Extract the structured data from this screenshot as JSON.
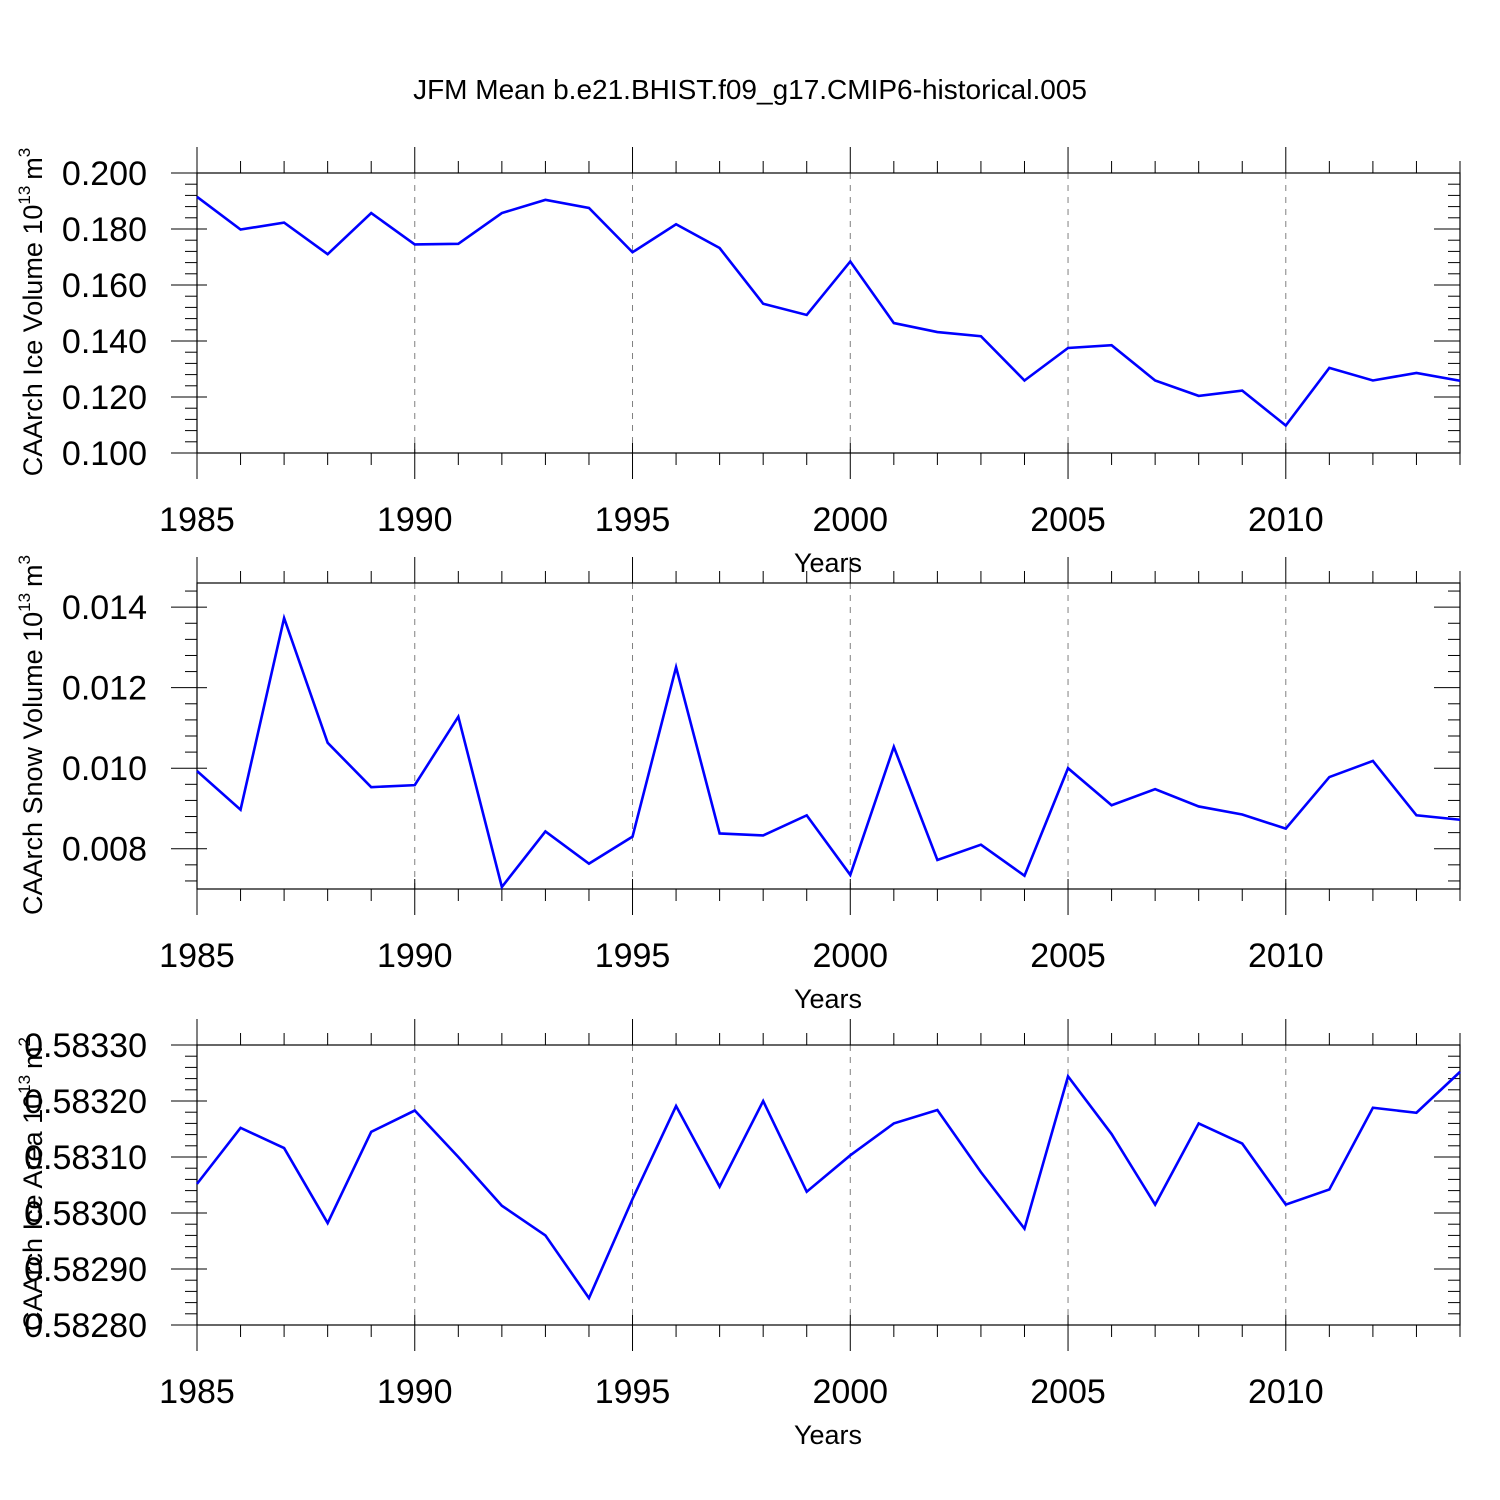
{
  "title": "JFM Mean b.e21.BHIST.f09_g17.CMIP6-historical.005",
  "chart_data": [
    {
      "type": "line",
      "ylabel_main": "CAArch Ice Volume 10",
      "ylabel_exp": "13",
      "ylabel_unit": "m",
      "ylabel_unit_exp": "3",
      "xlabel": "Years",
      "xlim": [
        1985,
        2014
      ],
      "ylim": [
        0.1,
        0.2
      ],
      "xticks": [
        1985,
        1990,
        1995,
        2000,
        2005,
        2010
      ],
      "yticks": [
        0.1,
        0.12,
        0.14,
        0.16,
        0.18,
        0.2
      ],
      "ytick_labels": [
        "0.100",
        "0.120",
        "0.140",
        "0.160",
        "0.180",
        "0.200"
      ],
      "grid": "vertical dashed at labeled years",
      "x": [
        1985,
        1986,
        1987,
        1988,
        1989,
        1990,
        1991,
        1992,
        1993,
        1994,
        1995,
        1996,
        1997,
        1998,
        1999,
        2000,
        2001,
        2002,
        2003,
        2004,
        2005,
        2006,
        2007,
        2008,
        2009,
        2010,
        2011,
        2012,
        2013,
        2014
      ],
      "series": [
        {
          "color": "#0000ff",
          "values": [
            0.1915,
            0.1798,
            0.1823,
            0.171,
            0.1857,
            0.1745,
            0.1747,
            0.1857,
            0.1904,
            0.1875,
            0.1717,
            0.1817,
            0.1732,
            0.1533,
            0.1493,
            0.1684,
            0.1464,
            0.1432,
            0.1417,
            0.1259,
            0.1375,
            0.1385,
            0.1259,
            0.1204,
            0.1223,
            0.1098,
            0.1304,
            0.1259,
            0.1286,
            0.1258
          ]
        }
      ]
    },
    {
      "type": "line",
      "ylabel_main": "CAArch Snow Volume 10",
      "ylabel_exp": "13",
      "ylabel_unit": "m",
      "ylabel_unit_exp": "3",
      "xlabel": "Years",
      "xlim": [
        1985,
        2014
      ],
      "ylim": [
        0.007,
        0.0146
      ],
      "xticks": [
        1985,
        1990,
        1995,
        2000,
        2005,
        2010
      ],
      "yticks": [
        0.008,
        0.01,
        0.012,
        0.014
      ],
      "ytick_labels": [
        "0.008",
        "0.010",
        "0.012",
        "0.014"
      ],
      "grid": "vertical dashed at labeled years",
      "x": [
        1985,
        1986,
        1987,
        1988,
        1989,
        1990,
        1991,
        1992,
        1993,
        1994,
        1995,
        1996,
        1997,
        1998,
        1999,
        2000,
        2001,
        2002,
        2003,
        2004,
        2005,
        2006,
        2007,
        2008,
        2009,
        2010,
        2011,
        2012,
        2013,
        2014
      ],
      "series": [
        {
          "color": "#0000ff",
          "values": [
            0.00993,
            0.00897,
            0.01373,
            0.01063,
            0.00953,
            0.00958,
            0.01128,
            0.00705,
            0.00843,
            0.00763,
            0.0083,
            0.01251,
            0.00838,
            0.00833,
            0.00883,
            0.00735,
            0.01053,
            0.00772,
            0.0081,
            0.00733,
            0.01,
            0.00908,
            0.00948,
            0.00905,
            0.00885,
            0.0085,
            0.00978,
            0.01018,
            0.00883,
            0.00872
          ]
        }
      ]
    },
    {
      "type": "line",
      "ylabel_main": "CAArch Ice Area 10",
      "ylabel_exp": "13",
      "ylabel_unit": "m",
      "ylabel_unit_exp": "2",
      "xlabel": "Years",
      "xlim": [
        1985,
        2014
      ],
      "ylim": [
        0.5828,
        0.5833
      ],
      "xticks": [
        1985,
        1990,
        1995,
        2000,
        2005,
        2010
      ],
      "yticks": [
        0.5828,
        0.5829,
        0.583,
        0.5831,
        0.5832,
        0.5833
      ],
      "ytick_labels": [
        "0.58280",
        "0.58290",
        "0.58300",
        "0.58310",
        "0.58320",
        "0.58330"
      ],
      "grid": "vertical dashed at labeled years",
      "x": [
        1985,
        1986,
        1987,
        1988,
        1989,
        1990,
        1991,
        1992,
        1993,
        1994,
        1995,
        1996,
        1997,
        1998,
        1999,
        2000,
        2001,
        2002,
        2003,
        2004,
        2005,
        2006,
        2007,
        2008,
        2009,
        2010,
        2011,
        2012,
        2013,
        2014
      ],
      "series": [
        {
          "color": "#0000ff",
          "values": [
            0.583052,
            0.583152,
            0.583116,
            0.582982,
            0.583145,
            0.583183,
            0.5831,
            0.583013,
            0.58296,
            0.582848,
            0.583025,
            0.583191,
            0.583047,
            0.5832,
            0.583038,
            0.583103,
            0.58316,
            0.583184,
            0.583073,
            0.582972,
            0.583244,
            0.583141,
            0.583015,
            0.58316,
            0.583124,
            0.583015,
            0.583042,
            0.583188,
            0.583179,
            0.583252
          ]
        }
      ]
    }
  ]
}
